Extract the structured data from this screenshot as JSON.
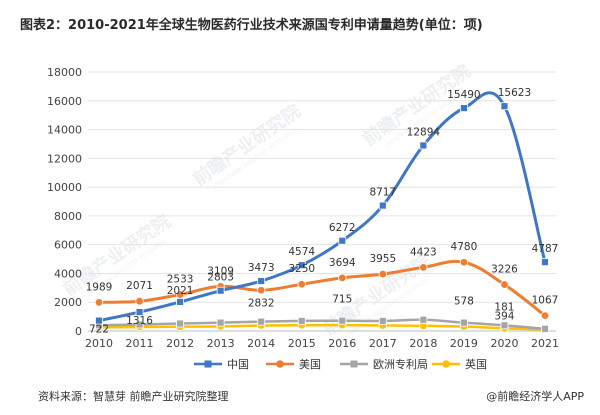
{
  "title": "图表2：2010-2021年全球生物医药行业技术来源国专利申请量趋势(单位：项)",
  "footer": {
    "source_label": "资料来源：",
    "source_value": "智慧芽 前瞻产业研究院整理",
    "brand": "@前瞻经济学人APP"
  },
  "watermark": {
    "text": "前瞻产业研究院",
    "text_en": "QIANZHAN INDUSTRY RESEARCH"
  },
  "colors": {
    "china": "#3f76c6",
    "usa": "#ee7d31",
    "europe": "#a5a5a5",
    "uk": "#ffc000"
  },
  "chart_data": {
    "type": "line",
    "title": "图表2：2010-2021年全球生物医药行业技术来源国专利申请量趋势(单位：项)",
    "categories": [
      "2010",
      "2011",
      "2012",
      "2013",
      "2014",
      "2015",
      "2016",
      "2017",
      "2018",
      "2019",
      "2020",
      "2021"
    ],
    "ylim": [
      0,
      18000
    ],
    "yticks": [
      0,
      2000,
      4000,
      6000,
      8000,
      10000,
      12000,
      14000,
      16000,
      18000
    ],
    "legend_position": "bottom",
    "series": [
      {
        "name": "中国",
        "color": "#3f76c6",
        "marker": "square",
        "values": [
          722,
          1316,
          2021,
          2803,
          3473,
          4574,
          6272,
          8717,
          12894,
          15490,
          15623,
          4787
        ],
        "labels": [
          "722",
          "1316",
          "2021",
          "2803",
          "3473",
          "4574",
          "6272",
          "8717",
          "12894",
          "15490",
          "15623",
          "4787"
        ]
      },
      {
        "name": "美国",
        "color": "#ee7d31",
        "marker": "circle",
        "values": [
          1989,
          2071,
          2533,
          3109,
          2832,
          3250,
          3694,
          3955,
          4423,
          4780,
          3226,
          1067
        ],
        "labels": [
          "1989",
          "2071",
          "2533",
          "3109",
          "2832",
          "3250",
          "3694",
          "3955",
          "4423",
          "4780",
          "3226",
          "1067"
        ]
      },
      {
        "name": "欧洲专利局",
        "color": "#a5a5a5",
        "marker": "square",
        "values": [
          400,
          450,
          520,
          580,
          650,
          700,
          715,
          700,
          780,
          578,
          394,
          150
        ],
        "labels": [
          "",
          "",
          "",
          "",
          "",
          "",
          "715",
          "",
          "",
          "578",
          "394",
          ""
        ]
      },
      {
        "name": "英国",
        "color": "#ffc000",
        "marker": "circle",
        "values": [
          250,
          280,
          300,
          320,
          380,
          400,
          410,
          380,
          360,
          310,
          181,
          100
        ],
        "labels": [
          "",
          "",
          "",
          "",
          "",
          "",
          "",
          "",
          "",
          "",
          "181",
          ""
        ]
      }
    ]
  }
}
